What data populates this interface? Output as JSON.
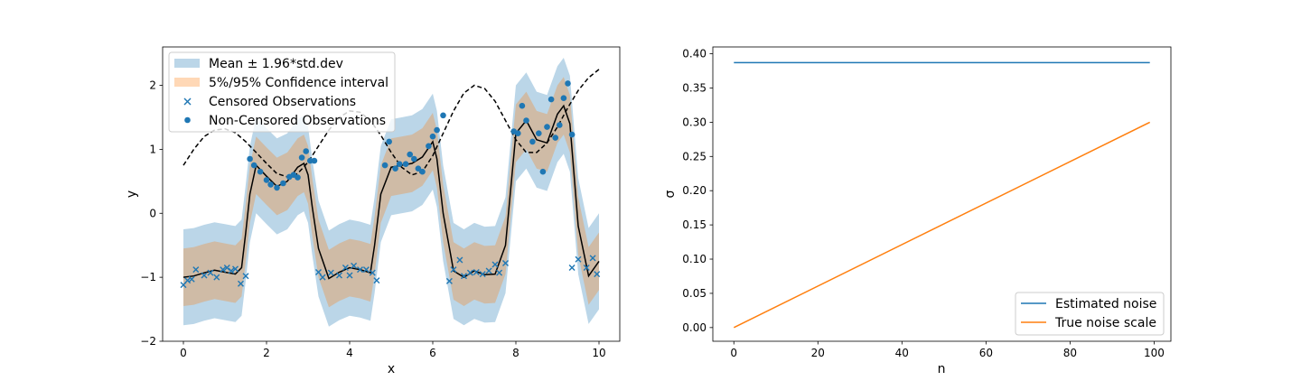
{
  "chart_data": [
    {
      "type": "line",
      "xlabel": "x",
      "ylabel": "y",
      "xlim": [
        -0.5,
        10.5
      ],
      "ylim": [
        -2.0,
        2.6
      ],
      "xticks": [
        0,
        2,
        4,
        6,
        8,
        10
      ],
      "yticks": [
        -2,
        -1,
        0,
        1,
        2
      ],
      "xtick_labels": [
        "0",
        "2",
        "4",
        "6",
        "8",
        "10"
      ],
      "ytick_labels": [
        "−2",
        "−1",
        "0",
        "1",
        "2"
      ],
      "grid": false,
      "legend_position": "upper-left",
      "legend": [
        {
          "label": "Mean ± 1.96*std.dev",
          "kind": "band",
          "color": "#1f77b4"
        },
        {
          "label": "5%/95% Confidence interval",
          "kind": "band",
          "color": "#ff7f0e"
        },
        {
          "label": "Censored Observations",
          "kind": "x-marker",
          "color": "#1f77b4"
        },
        {
          "label": "Non-Censored Observations",
          "kind": "dot-marker",
          "color": "#1f77b4"
        }
      ],
      "colors": {
        "blue": "#1f77b4",
        "orange": "#ff7f0e",
        "black": "#000000"
      },
      "x": [
        0.0,
        0.25,
        0.5,
        0.75,
        1.0,
        1.25,
        1.4,
        1.5,
        1.6,
        1.75,
        2.0,
        2.25,
        2.5,
        2.75,
        2.9,
        3.0,
        3.1,
        3.25,
        3.5,
        3.75,
        4.0,
        4.25,
        4.5,
        4.6,
        4.75,
        5.0,
        5.25,
        5.5,
        5.75,
        6.0,
        6.1,
        6.25,
        6.5,
        6.75,
        7.0,
        7.25,
        7.5,
        7.75,
        7.85,
        8.0,
        8.25,
        8.5,
        8.75,
        9.0,
        9.15,
        9.3,
        9.5,
        9.75,
        10.0
      ],
      "series": [
        {
          "role": "mean",
          "style": "solid",
          "color": "#000000",
          "values": [
            -1.0,
            -0.98,
            -0.93,
            -0.89,
            -0.92,
            -0.95,
            -0.85,
            -0.3,
            0.3,
            0.75,
            0.58,
            0.42,
            0.5,
            0.72,
            0.78,
            0.6,
            0.1,
            -0.55,
            -1.02,
            -0.92,
            -0.85,
            -0.88,
            -0.93,
            -0.5,
            0.3,
            0.72,
            0.75,
            0.78,
            0.88,
            1.12,
            0.85,
            0.0,
            -0.9,
            -1.0,
            -0.9,
            -0.96,
            -0.95,
            -0.5,
            0.2,
            1.25,
            1.45,
            1.15,
            1.1,
            1.55,
            1.68,
            1.4,
            -0.2,
            -0.98,
            -0.75
          ]
        },
        {
          "role": "true function",
          "style": "dashed",
          "color": "#000000",
          "x": [
            0.0,
            0.25,
            0.5,
            0.75,
            1.0,
            1.25,
            1.5,
            1.75,
            2.0,
            2.25,
            2.5,
            2.75,
            3.0,
            3.25,
            3.5,
            3.75,
            4.0,
            4.25,
            4.5,
            4.75,
            5.0,
            5.25,
            5.5,
            5.75,
            6.0,
            6.25,
            6.5,
            6.75,
            7.0,
            7.25,
            7.5,
            7.75,
            8.0,
            8.25,
            8.5,
            8.75,
            9.0,
            9.25,
            9.5,
            9.75,
            10.0
          ],
          "values": [
            0.75,
            1.0,
            1.2,
            1.3,
            1.32,
            1.26,
            1.12,
            0.95,
            0.78,
            0.62,
            0.57,
            0.62,
            0.8,
            1.05,
            1.3,
            1.5,
            1.6,
            1.58,
            1.45,
            1.22,
            0.95,
            0.72,
            0.6,
            0.65,
            0.9,
            1.25,
            1.6,
            1.88,
            2.0,
            1.95,
            1.75,
            1.45,
            1.15,
            0.95,
            0.95,
            1.1,
            1.35,
            1.65,
            1.92,
            2.12,
            2.25
          ]
        }
      ],
      "band_95_halfwidth": 0.75,
      "band_ci_halfwidth": 0.45,
      "censored_observations": [
        {
          "x": 0.0,
          "y": -1.12
        },
        {
          "x": 0.1,
          "y": -1.05
        },
        {
          "x": 0.2,
          "y": -1.03
        },
        {
          "x": 0.3,
          "y": -0.88
        },
        {
          "x": 0.5,
          "y": -0.97
        },
        {
          "x": 0.65,
          "y": -0.93
        },
        {
          "x": 0.8,
          "y": -1.0
        },
        {
          "x": 0.95,
          "y": -0.88
        },
        {
          "x": 1.05,
          "y": -0.85
        },
        {
          "x": 1.15,
          "y": -0.9
        },
        {
          "x": 1.25,
          "y": -0.87
        },
        {
          "x": 1.38,
          "y": -1.1
        },
        {
          "x": 1.5,
          "y": -0.98
        },
        {
          "x": 3.25,
          "y": -0.92
        },
        {
          "x": 3.35,
          "y": -1.0
        },
        {
          "x": 3.55,
          "y": -0.93
        },
        {
          "x": 3.75,
          "y": -0.97
        },
        {
          "x": 3.9,
          "y": -0.85
        },
        {
          "x": 4.0,
          "y": -0.97
        },
        {
          "x": 4.1,
          "y": -0.82
        },
        {
          "x": 4.25,
          "y": -0.88
        },
        {
          "x": 4.4,
          "y": -0.88
        },
        {
          "x": 4.55,
          "y": -0.93
        },
        {
          "x": 4.65,
          "y": -1.05
        },
        {
          "x": 6.4,
          "y": -1.06
        },
        {
          "x": 6.5,
          "y": -0.88
        },
        {
          "x": 6.65,
          "y": -0.73
        },
        {
          "x": 6.75,
          "y": -0.98
        },
        {
          "x": 6.9,
          "y": -0.93
        },
        {
          "x": 7.05,
          "y": -0.92
        },
        {
          "x": 7.2,
          "y": -0.95
        },
        {
          "x": 7.35,
          "y": -0.9
        },
        {
          "x": 7.5,
          "y": -0.8
        },
        {
          "x": 7.6,
          "y": -0.93
        },
        {
          "x": 7.75,
          "y": -0.78
        },
        {
          "x": 9.35,
          "y": -0.85
        },
        {
          "x": 9.5,
          "y": -0.72
        },
        {
          "x": 9.7,
          "y": -0.85
        },
        {
          "x": 9.85,
          "y": -0.7
        },
        {
          "x": 9.95,
          "y": -0.95
        }
      ],
      "non_censored_observations": [
        {
          "x": 1.6,
          "y": 0.85
        },
        {
          "x": 1.7,
          "y": 0.75
        },
        {
          "x": 1.85,
          "y": 0.65
        },
        {
          "x": 2.0,
          "y": 0.52
        },
        {
          "x": 2.1,
          "y": 0.45
        },
        {
          "x": 2.25,
          "y": 0.4
        },
        {
          "x": 2.4,
          "y": 0.47
        },
        {
          "x": 2.55,
          "y": 0.57
        },
        {
          "x": 2.65,
          "y": 0.6
        },
        {
          "x": 2.75,
          "y": 0.56
        },
        {
          "x": 2.85,
          "y": 0.87
        },
        {
          "x": 2.95,
          "y": 0.97
        },
        {
          "x": 3.05,
          "y": 0.82
        },
        {
          "x": 3.15,
          "y": 0.82
        },
        {
          "x": 4.85,
          "y": 0.75
        },
        {
          "x": 4.95,
          "y": 1.12
        },
        {
          "x": 5.1,
          "y": 0.7
        },
        {
          "x": 5.2,
          "y": 0.77
        },
        {
          "x": 5.35,
          "y": 0.77
        },
        {
          "x": 5.45,
          "y": 0.92
        },
        {
          "x": 5.55,
          "y": 0.85
        },
        {
          "x": 5.65,
          "y": 0.7
        },
        {
          "x": 5.75,
          "y": 0.65
        },
        {
          "x": 5.9,
          "y": 1.05
        },
        {
          "x": 6.0,
          "y": 1.2
        },
        {
          "x": 6.1,
          "y": 1.3
        },
        {
          "x": 6.25,
          "y": 1.53
        },
        {
          "x": 7.95,
          "y": 1.28
        },
        {
          "x": 8.05,
          "y": 1.25
        },
        {
          "x": 8.15,
          "y": 1.68
        },
        {
          "x": 8.25,
          "y": 1.45
        },
        {
          "x": 8.4,
          "y": 1.12
        },
        {
          "x": 8.55,
          "y": 1.25
        },
        {
          "x": 8.65,
          "y": 0.65
        },
        {
          "x": 8.75,
          "y": 1.35
        },
        {
          "x": 8.85,
          "y": 1.78
        },
        {
          "x": 8.95,
          "y": 1.18
        },
        {
          "x": 9.05,
          "y": 1.38
        },
        {
          "x": 9.15,
          "y": 1.8
        },
        {
          "x": 9.25,
          "y": 2.03
        },
        {
          "x": 9.35,
          "y": 1.23
        }
      ]
    },
    {
      "type": "line",
      "xlabel": "n",
      "ylabel": "σ",
      "xlim": [
        -5,
        104
      ],
      "ylim": [
        -0.02,
        0.41
      ],
      "xticks": [
        0,
        20,
        40,
        60,
        80,
        100
      ],
      "yticks": [
        0.0,
        0.05,
        0.1,
        0.15,
        0.2,
        0.25,
        0.3,
        0.35,
        0.4
      ],
      "xtick_labels": [
        "0",
        "20",
        "40",
        "60",
        "80",
        "100"
      ],
      "ytick_labels": [
        "0.00",
        "0.05",
        "0.10",
        "0.15",
        "0.20",
        "0.25",
        "0.30",
        "0.35",
        "0.40"
      ],
      "grid": false,
      "legend_position": "lower-right",
      "series": [
        {
          "name": "Estimated noise",
          "color": "#1f77b4",
          "x": [
            0,
            99
          ],
          "values": [
            0.387,
            0.387
          ]
        },
        {
          "name": "True noise scale",
          "color": "#ff7f0e",
          "x": [
            0,
            99
          ],
          "values": [
            0.0,
            0.3
          ]
        }
      ]
    }
  ]
}
